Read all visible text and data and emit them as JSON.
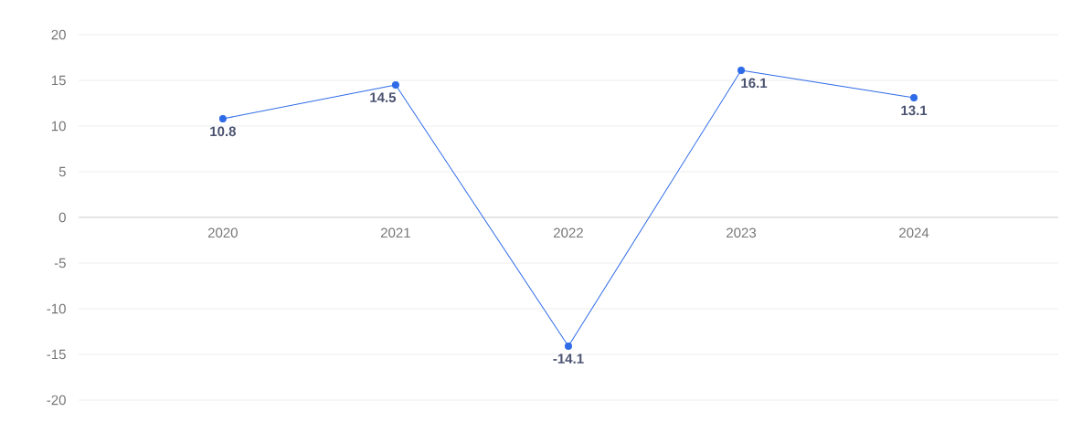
{
  "chart_data": {
    "type": "line",
    "categories": [
      "2020",
      "2021",
      "2022",
      "2023",
      "2024"
    ],
    "series": [
      {
        "color": "#2f6be8",
        "values": [
          10.8,
          14.5,
          -14.1,
          16.1,
          13.1
        ]
      }
    ],
    "ylim": [
      -20,
      20
    ],
    "yticks": [
      -20,
      -15,
      -10,
      -5,
      0,
      5,
      10,
      15,
      20
    ],
    "grid": "y",
    "data_labels": true,
    "marker": "circle",
    "line_style": "solid"
  }
}
